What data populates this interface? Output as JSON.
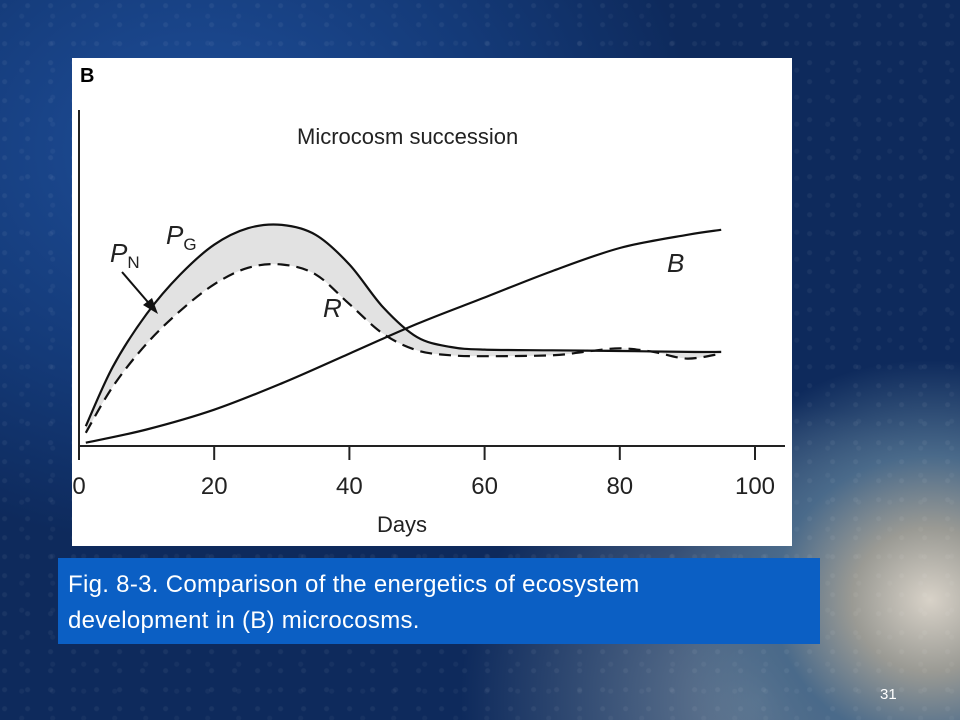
{
  "panel_label": "B",
  "caption": {
    "line1": "Fig. 8-3. Comparison of the energetics of ecosystem",
    "line2": "development in (B) microcosms."
  },
  "slide_number": "31",
  "chart_data": {
    "type": "line",
    "title": "Microcosm succession",
    "xlabel": "Days",
    "ylabel": "",
    "xlim": [
      0,
      100
    ],
    "x_ticks": [
      "0",
      "20",
      "40",
      "60",
      "80",
      "100"
    ],
    "y_ticks": [],
    "grid": false,
    "annotations": [
      {
        "text": "P",
        "sub": "G",
        "italic": true
      },
      {
        "text": "P",
        "sub": "N",
        "italic": true,
        "arrow_to_series": "R"
      },
      {
        "text": "R",
        "italic": true
      },
      {
        "text": "B",
        "italic": true
      }
    ],
    "shaded_region": {
      "between": [
        "PG",
        "R"
      ],
      "color": "#e2e2e2"
    },
    "series": [
      {
        "name": "PG",
        "style": "solid",
        "x": [
          1,
          5,
          10,
          15,
          20,
          25,
          30,
          35,
          40,
          45,
          50,
          55,
          60,
          70,
          80,
          90,
          95
        ],
        "y": [
          0.06,
          0.24,
          0.4,
          0.52,
          0.61,
          0.66,
          0.67,
          0.64,
          0.55,
          0.42,
          0.33,
          0.3,
          0.292,
          0.29,
          0.288,
          0.285,
          0.285
        ]
      },
      {
        "name": "R",
        "style": "dashed",
        "x": [
          1,
          5,
          10,
          15,
          20,
          25,
          30,
          35,
          40,
          45,
          50,
          55,
          60,
          70,
          75,
          80,
          85,
          90,
          95
        ],
        "y": [
          0.04,
          0.18,
          0.31,
          0.41,
          0.49,
          0.54,
          0.55,
          0.52,
          0.43,
          0.34,
          0.29,
          0.275,
          0.272,
          0.275,
          0.286,
          0.296,
          0.285,
          0.265,
          0.28
        ]
      },
      {
        "name": "B",
        "style": "solid",
        "x": [
          1,
          10,
          20,
          30,
          40,
          50,
          60,
          70,
          80,
          90,
          95
        ],
        "y": [
          0.01,
          0.05,
          0.11,
          0.19,
          0.28,
          0.37,
          0.45,
          0.53,
          0.6,
          0.64,
          0.655
        ]
      }
    ]
  }
}
